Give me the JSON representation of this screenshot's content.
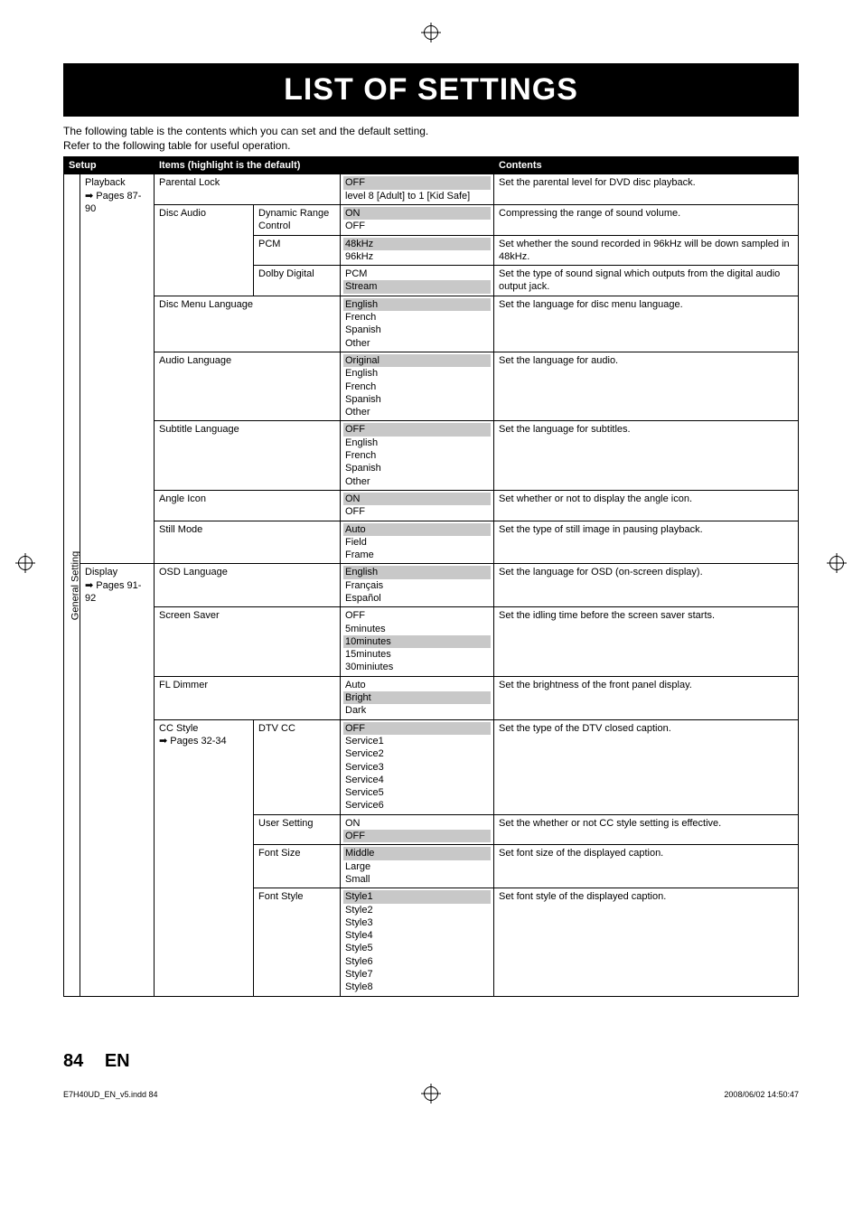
{
  "title": "LIST OF SETTINGS",
  "intro_line1": "The following table is the contents which you can set and the default setting.",
  "intro_line2": "Refer to the following table for useful operation.",
  "headers": {
    "setup": "Setup",
    "items": "Items (highlight is the default)",
    "contents": "Contents"
  },
  "vert_label": "General Setting",
  "subcats": {
    "playback": {
      "name": "Playback",
      "pages": "Pages 87-90"
    },
    "display": {
      "name": "Display",
      "pages": "Pages 91-92"
    }
  },
  "rows": {
    "parental": {
      "item": "Parental Lock",
      "opts": [
        "OFF",
        "level 8 [Adult] to 1 [Kid Safe]"
      ],
      "hl": [
        0
      ],
      "desc": "Set the parental level for DVD disc playback."
    },
    "discaudio_label": "Disc Audio",
    "drc": {
      "item": "Dynamic Range Control",
      "opts": [
        "ON",
        "OFF"
      ],
      "hl": [
        0
      ],
      "desc": "Compressing the range of sound volume."
    },
    "pcm": {
      "item": "PCM",
      "opts": [
        "48kHz",
        "96kHz"
      ],
      "hl": [
        0
      ],
      "desc": "Set whether the sound recorded in 96kHz will be down sampled in 48kHz."
    },
    "dolby": {
      "item": "Dolby Digital",
      "opts": [
        "PCM",
        "Stream"
      ],
      "hl": [
        1
      ],
      "desc": "Set the type of sound signal which outputs from the digital audio output jack."
    },
    "discmenu": {
      "item": "Disc Menu Language",
      "opts": [
        "English",
        "French",
        "Spanish",
        "Other"
      ],
      "hl": [
        0
      ],
      "desc": "Set the language for disc menu language."
    },
    "audiolang": {
      "item": "Audio Language",
      "opts": [
        "Original",
        "English",
        "French",
        "Spanish",
        "Other"
      ],
      "hl": [
        0
      ],
      "desc": "Set the language for audio."
    },
    "subtitle": {
      "item": "Subtitle Language",
      "opts": [
        "OFF",
        "English",
        "French",
        "Spanish",
        "Other"
      ],
      "hl": [
        0
      ],
      "desc": "Set the language for subtitles."
    },
    "angle": {
      "item": "Angle Icon",
      "opts": [
        "ON",
        "OFF"
      ],
      "hl": [
        0
      ],
      "desc": "Set whether or not to display the angle icon."
    },
    "still": {
      "item": "Still Mode",
      "opts": [
        "Auto",
        "Field",
        "Frame"
      ],
      "hl": [
        0
      ],
      "desc": "Set the type of still image in pausing playback."
    },
    "osd": {
      "item": "OSD Language",
      "opts": [
        "English",
        "Français",
        "Español"
      ],
      "hl": [
        0
      ],
      "desc": "Set the language for OSD (on-screen display)."
    },
    "saver": {
      "item": "Screen Saver",
      "opts": [
        "OFF",
        "5minutes",
        "10minutes",
        "15minutes",
        "30miniutes"
      ],
      "hl": [
        2
      ],
      "desc": "Set the idling time before the screen saver starts."
    },
    "fldimmer": {
      "item": "FL Dimmer",
      "opts": [
        "Auto",
        "Bright",
        "Dark"
      ],
      "hl": [
        1
      ],
      "desc": "Set the brightness of the front panel display."
    },
    "cc_label": "CC Style",
    "cc_pages": "Pages 32-34",
    "dtvcc": {
      "item": "DTV CC",
      "opts": [
        "OFF",
        "Service1",
        "Service2",
        "Service3",
        "Service4",
        "Service5",
        "Service6"
      ],
      "hl": [
        0
      ],
      "desc": "Set the type of the DTV closed caption."
    },
    "usersetting": {
      "item": "User Setting",
      "opts": [
        "ON",
        "OFF"
      ],
      "hl": [
        1
      ],
      "desc": "Set the whether or not CC style setting is effective."
    },
    "fontsize": {
      "item": "Font Size",
      "opts": [
        "Middle",
        "Large",
        "Small"
      ],
      "hl": [
        0
      ],
      "desc": "Set font size of the displayed caption."
    },
    "fontstyle": {
      "item": "Font Style",
      "opts": [
        "Style1",
        "Style2",
        "Style3",
        "Style4",
        "Style5",
        "Style6",
        "Style7",
        "Style8"
      ],
      "hl": [
        0
      ],
      "desc": "Set font style of the displayed caption."
    }
  },
  "footer": {
    "page": "84",
    "lang": "EN"
  },
  "bottom": {
    "left": "E7H40UD_EN_v5.indd   84",
    "right": "2008/06/02   14:50:47"
  },
  "arrow": "➡"
}
